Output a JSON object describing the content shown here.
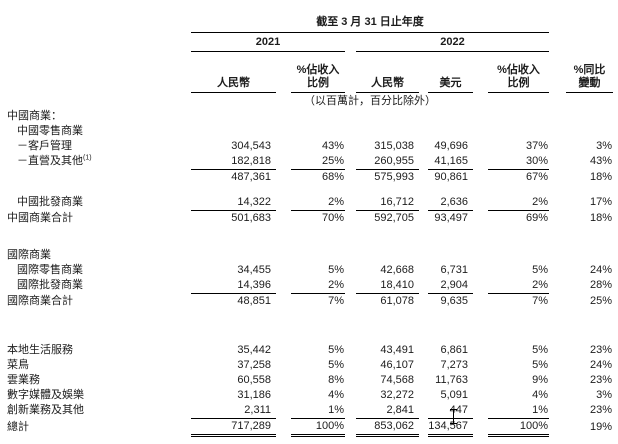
{
  "table": {
    "period_header": "截至 3 月 31 日止年度",
    "years": [
      "2021",
      "2022"
    ],
    "columns": [
      {
        "l1": "人民幣",
        "l2": ""
      },
      {
        "l1": "%佔收入",
        "l2": "比例"
      },
      {
        "l1": "人民幣",
        "l2": ""
      },
      {
        "l1": "美元",
        "l2": ""
      },
      {
        "l1": "%佔收入",
        "l2": "比例"
      },
      {
        "l1": "%同比",
        "l2": "變動"
      }
    ],
    "unit_note": "（以百萬計，百分比除外）",
    "rows": [
      {
        "label": "中國商業：",
        "indent": 0,
        "values": [],
        "rule": "none"
      },
      {
        "label": "中國零售商業",
        "indent": 1,
        "values": [],
        "rule": "none"
      },
      {
        "label": "－客戶管理",
        "indent": 1,
        "values": [
          "304,543",
          "43%",
          "315,038",
          "49,696",
          "37%",
          "3%"
        ],
        "rule": "none"
      },
      {
        "label": "－直營及其他",
        "sup": "(1)",
        "indent": 1,
        "values": [
          "182,818",
          "25%",
          "260,955",
          "41,165",
          "30%",
          "43%"
        ],
        "rule": "single"
      },
      {
        "label": "",
        "indent": 0,
        "values": [
          "487,361",
          "68%",
          "575,993",
          "90,861",
          "67%",
          "18%"
        ],
        "rule": "none"
      },
      {
        "divider": "a"
      },
      {
        "label": "中國批發商業",
        "indent": 1,
        "values": [
          "14,322",
          "2%",
          "16,712",
          "2,636",
          "2%",
          "17%"
        ],
        "rule": "single"
      },
      {
        "label": "中國商業合計",
        "indent": 0,
        "values": [
          "501,683",
          "70%",
          "592,705",
          "93,497",
          "69%",
          "18%"
        ],
        "rule": "none"
      },
      {
        "divider": "b"
      },
      {
        "label": "國際商業",
        "indent": 0,
        "values": [],
        "rule": "none"
      },
      {
        "label": "國際零售商業",
        "indent": 1,
        "values": [
          "34,455",
          "5%",
          "42,668",
          "6,731",
          "5%",
          "24%"
        ],
        "rule": "none"
      },
      {
        "label": "國際批發商業",
        "indent": 1,
        "values": [
          "14,396",
          "2%",
          "18,410",
          "2,904",
          "2%",
          "28%"
        ],
        "rule": "single"
      },
      {
        "label": "國際商業合計",
        "indent": 0,
        "values": [
          "48,851",
          "7%",
          "61,078",
          "9,635",
          "7%",
          "25%"
        ],
        "rule": "none"
      },
      {
        "divider": "c"
      },
      {
        "label": "本地生活服務",
        "indent": 0,
        "values": [
          "35,442",
          "5%",
          "43,491",
          "6,861",
          "5%",
          "23%"
        ],
        "rule": "none"
      },
      {
        "label": "菜鳥",
        "indent": 0,
        "values": [
          "37,258",
          "5%",
          "46,107",
          "7,273",
          "5%",
          "24%"
        ],
        "rule": "none"
      },
      {
        "label": "雲業務",
        "indent": 0,
        "values": [
          "60,558",
          "8%",
          "74,568",
          "11,763",
          "9%",
          "23%"
        ],
        "rule": "none"
      },
      {
        "label": "數字媒體及娛樂",
        "indent": 0,
        "values": [
          "31,186",
          "4%",
          "32,272",
          "5,091",
          "4%",
          "3%"
        ],
        "rule": "none"
      },
      {
        "label": "創新業務及其他",
        "indent": 0,
        "values": [
          "2,311",
          "1%",
          "2,841",
          "447",
          "1%",
          "23%"
        ],
        "rule": "single"
      },
      {
        "label": "總計",
        "indent": 0,
        "values": [
          "717,289",
          "100%",
          "853,062",
          "134,567",
          "100%",
          "19%"
        ],
        "rule": "double"
      }
    ],
    "cursor": {
      "visible": true
    }
  }
}
